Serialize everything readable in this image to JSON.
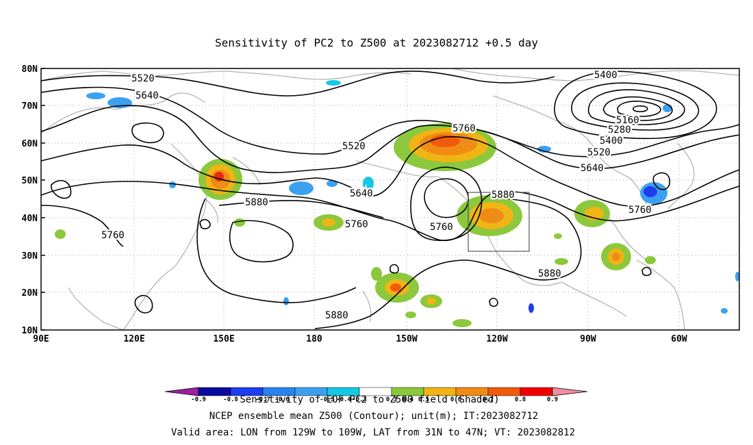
{
  "title": "Sensitivity of PC2 to Z500 at 2023082712 +0.5 day",
  "axes": {
    "lat_labels": [
      "80N",
      "70N",
      "60N",
      "50N",
      "40N",
      "30N",
      "20N",
      "10N"
    ],
    "lon_labels": [
      "90E",
      "120E",
      "150E",
      "180",
      "150W",
      "120W",
      "90W",
      "60W"
    ]
  },
  "contour_labels": [
    "5520",
    "5640",
    "5400",
    "5160",
    "5280",
    "5400",
    "5520",
    "5640",
    "5760",
    "5520",
    "5640",
    "5760",
    "5880",
    "5760",
    "5880",
    "5880",
    "5760",
    "5760",
    "5880"
  ],
  "colorbar": {
    "tick_labels": [
      "-0.9",
      "-0.8",
      "-0.7",
      "-0.6",
      "-0.5",
      "-0.4",
      "-0.3",
      "0.3",
      "0.4",
      "0.5",
      "0.6",
      "0.7",
      "0.8",
      "0.9"
    ],
    "colors": [
      "#a01ea0",
      "#0a0aa0",
      "#1e3cf0",
      "#2882f0",
      "#3ca0f0",
      "#14c8e6",
      "#ffffff",
      "#8cc83c",
      "#f0b414",
      "#f08c14",
      "#f05a0a",
      "#e6280a",
      "#f00000",
      "#f08ca0"
    ]
  },
  "caption": {
    "line1": "Sensitivity of EOF PC2 to Z500 field (Shaded)",
    "line2": "NCEP ensemble mean Z500 (Contour); unit(m); IT:2023082712",
    "line3": "Valid area: LON from 129W to 109W, LAT from 31N to 47N; VT: 2023082812"
  }
}
